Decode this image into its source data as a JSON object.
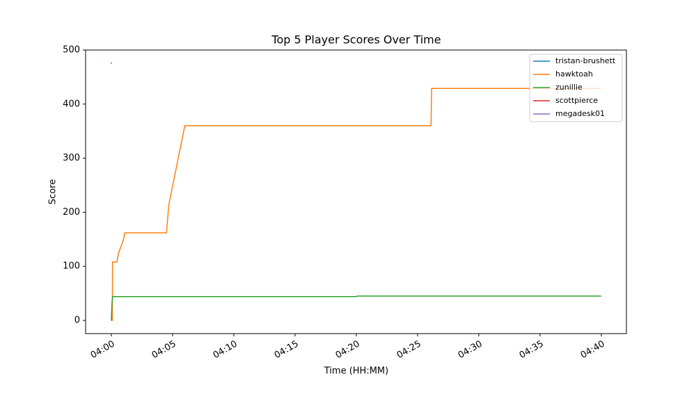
{
  "chart_data": {
    "type": "line",
    "title": "Top 5 Player Scores Over Time",
    "x_label": "Time (HH:MM)",
    "y_label": "Score",
    "xlim": [
      -2.1,
      42.05
    ],
    "ylim": [
      -24.4,
      500
    ],
    "xticks": [
      {
        "value": 0,
        "label": "04:00"
      },
      {
        "value": 5,
        "label": "04:05"
      },
      {
        "value": 10,
        "label": "04:10"
      },
      {
        "value": 15,
        "label": "04:15"
      },
      {
        "value": 20,
        "label": "04:20"
      },
      {
        "value": 25,
        "label": "04:25"
      },
      {
        "value": 30,
        "label": "04:30"
      },
      {
        "value": 35,
        "label": "04:35"
      },
      {
        "value": 40,
        "label": "04:40"
      }
    ],
    "yticks": [
      0,
      100,
      200,
      300,
      400,
      500
    ],
    "legend": "upper right",
    "series": [
      {
        "name": "tristan-brushett",
        "color": "#1f77b4",
        "x": [
          -0.05,
          0.05
        ],
        "values": [
          476,
          476
        ]
      },
      {
        "name": "hawktoah",
        "color": "#ff7f0e",
        "x": [
          0,
          0.08,
          0.1,
          0.45,
          0.6,
          1.0,
          1.1,
          4.5,
          4.7,
          6.0,
          26.1,
          26.15,
          40
        ],
        "values": [
          0,
          0,
          108,
          108,
          125,
          150,
          162,
          162,
          215,
          360,
          360,
          429,
          429
        ]
      },
      {
        "name": "zunillie",
        "color": "#2ca02c",
        "x": [
          0,
          0.05,
          0.1,
          20.0,
          20.05,
          40
        ],
        "values": [
          0,
          30,
          44,
          44,
          45,
          45
        ]
      },
      {
        "name": "scottpierce",
        "color": "#d62728",
        "x": [
          0,
          0.05
        ],
        "values": [
          0,
          0
        ]
      },
      {
        "name": "megadesk01",
        "color": "#9467bd",
        "x": [
          0,
          0.05
        ],
        "values": [
          0,
          0
        ]
      }
    ]
  }
}
